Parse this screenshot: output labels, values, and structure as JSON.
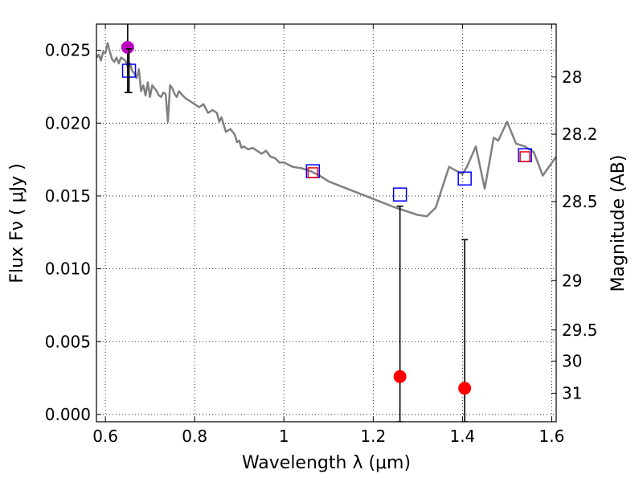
{
  "chart_data": {
    "type": "scatter",
    "xlabel": "Wavelength  λ (μm)",
    "ylabel": "Flux  Fν  ( μJy )",
    "y2label": "Magnitude (AB)",
    "xlim": [
      0.58,
      1.61
    ],
    "ylim": [
      -0.0005,
      0.0268
    ],
    "grid": true,
    "x_ticks": [
      {
        "value": 0.6,
        "label": "0.6"
      },
      {
        "value": 0.8,
        "label": "0.8"
      },
      {
        "value": 1.0,
        "label": "1"
      },
      {
        "value": 1.2,
        "label": "1.2"
      },
      {
        "value": 1.4,
        "label": "1.4"
      },
      {
        "value": 1.6,
        "label": "1.6"
      }
    ],
    "y_ticks": [
      {
        "value": 0.0,
        "label": "0.000"
      },
      {
        "value": 0.005,
        "label": "0.005"
      },
      {
        "value": 0.01,
        "label": "0.010"
      },
      {
        "value": 0.015,
        "label": "0.015"
      },
      {
        "value": 0.02,
        "label": "0.020"
      },
      {
        "value": 0.025,
        "label": "0.025"
      }
    ],
    "y2_ticks": [
      {
        "flux": 0.02317,
        "label": "28"
      },
      {
        "flux": 0.01924,
        "label": "28.2"
      },
      {
        "flux": 0.01462,
        "label": "28.5"
      },
      {
        "flux": 0.00919,
        "label": "29"
      },
      {
        "flux": 0.0058,
        "label": "29.5"
      },
      {
        "flux": 0.00366,
        "label": "30"
      },
      {
        "flux": 0.00146,
        "label": "31"
      }
    ],
    "series": [
      {
        "style": "line",
        "color": "#808080",
        "x": [
          0.58,
          0.585,
          0.59,
          0.595,
          0.6,
          0.605,
          0.61,
          0.615,
          0.62,
          0.625,
          0.63,
          0.635,
          0.64,
          0.645,
          0.65,
          0.655,
          0.66,
          0.665,
          0.67,
          0.675,
          0.68,
          0.685,
          0.69,
          0.695,
          0.7,
          0.705,
          0.71,
          0.715,
          0.72,
          0.725,
          0.73,
          0.735,
          0.74,
          0.745,
          0.75,
          0.755,
          0.76,
          0.765,
          0.77,
          0.78,
          0.79,
          0.8,
          0.81,
          0.82,
          0.83,
          0.84,
          0.85,
          0.855,
          0.86,
          0.865,
          0.87,
          0.88,
          0.89,
          0.895,
          0.9,
          0.905,
          0.91,
          0.92,
          0.93,
          0.94,
          0.95,
          0.96,
          0.97,
          0.98,
          0.99,
          1.0,
          1.02,
          1.04,
          1.06,
          1.08,
          1.1,
          1.15,
          1.2,
          1.25,
          1.28,
          1.3,
          1.32,
          1.34,
          1.37,
          1.4,
          1.41,
          1.43,
          1.45,
          1.47,
          1.48,
          1.5,
          1.52,
          1.54,
          1.56,
          1.58,
          1.61
        ],
        "y": [
          0.0245,
          0.0247,
          0.0243,
          0.0249,
          0.0248,
          0.0255,
          0.0249,
          0.0244,
          0.0242,
          0.0245,
          0.0241,
          0.0245,
          0.0244,
          0.0243,
          0.0239,
          0.0241,
          0.0236,
          0.0234,
          0.0231,
          0.0237,
          0.0222,
          0.0226,
          0.0219,
          0.0228,
          0.0218,
          0.0226,
          0.0224,
          0.0222,
          0.0219,
          0.0218,
          0.0221,
          0.022,
          0.0201,
          0.0226,
          0.0224,
          0.022,
          0.0218,
          0.0222,
          0.022,
          0.0217,
          0.0215,
          0.0213,
          0.0211,
          0.0213,
          0.0207,
          0.0209,
          0.0207,
          0.0201,
          0.0204,
          0.0199,
          0.0194,
          0.0196,
          0.0192,
          0.0187,
          0.0188,
          0.0183,
          0.0184,
          0.0182,
          0.0183,
          0.0181,
          0.0179,
          0.0181,
          0.0177,
          0.0176,
          0.0173,
          0.0173,
          0.017,
          0.0169,
          0.0167,
          0.0164,
          0.016,
          0.0154,
          0.0148,
          0.0142,
          0.0139,
          0.0137,
          0.0136,
          0.0142,
          0.017,
          0.0165,
          0.017,
          0.0184,
          0.0155,
          0.019,
          0.0188,
          0.0201,
          0.0186,
          0.0184,
          0.018,
          0.0164,
          0.0177
        ]
      },
      {
        "style": "open-square",
        "color": "#0000ff",
        "x": [
          0.653,
          1.065,
          1.26,
          1.405,
          1.54
        ],
        "y": [
          0.0236,
          0.0167,
          0.0151,
          0.0162,
          0.0178
        ]
      },
      {
        "style": "open-square",
        "color": "#ff0000",
        "x": [
          1.065,
          1.54
        ],
        "y": [
          0.0166,
          0.0177
        ]
      },
      {
        "style": "filled-circle-errorbar",
        "color": "#ff0000",
        "x": [
          1.26,
          1.405
        ],
        "y": [
          0.0026,
          0.0018
        ],
        "yerr_low": [
          0.0031,
          0.0023
        ],
        "yerr_high": [
          0.0117,
          0.0102
        ]
      },
      {
        "style": "filled-circle-errorbar",
        "color": "#bf00bf",
        "x": [
          0.65
        ],
        "y": [
          0.0252
        ],
        "yerr_low": [
          0.0031
        ],
        "yerr_high": [
          0.0031
        ]
      },
      {
        "style": "errorbar-only",
        "color": "#000000",
        "x": [
          0.653
        ],
        "y": [
          0.0236
        ],
        "yerr_low": [
          0.0015
        ],
        "yerr_high": [
          0.0015
        ]
      }
    ]
  }
}
